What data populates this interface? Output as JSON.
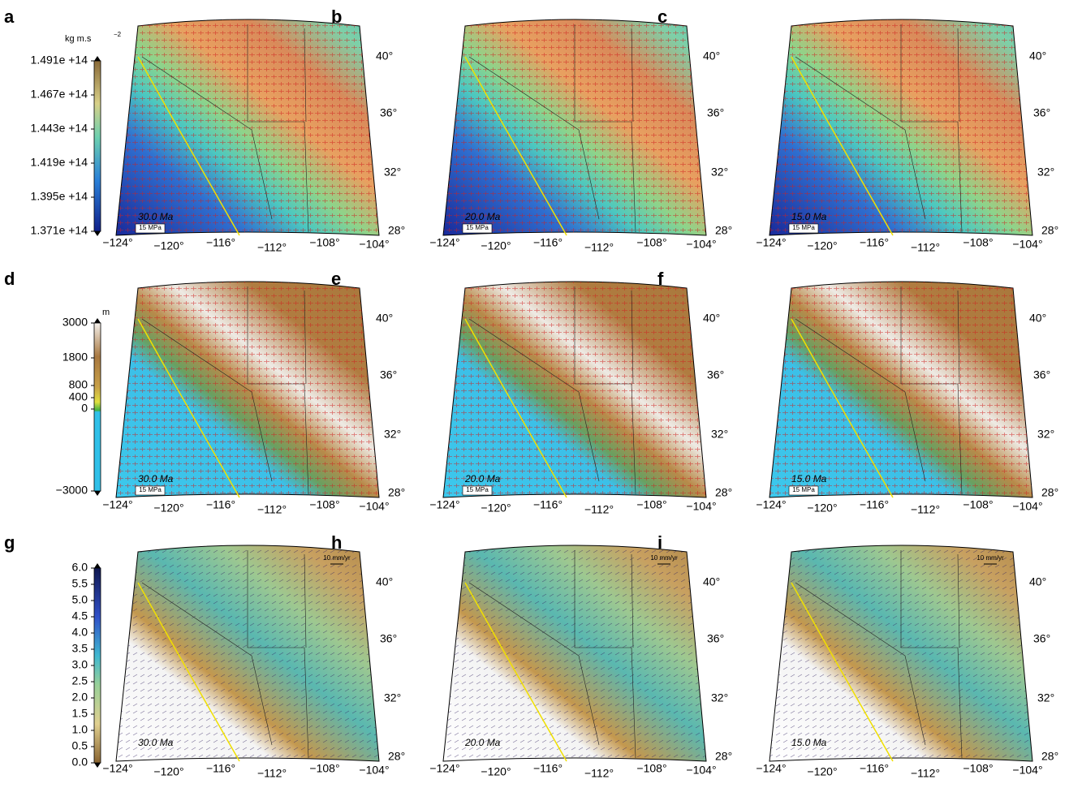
{
  "colorbars": [
    {
      "unit": "kg m.s",
      "unit_sup": "−2",
      "ticks": [
        "1.491e +14",
        "1.467e +14",
        "1.443e +14",
        "1.419e +14",
        "1.395e +14",
        "1.371e +14"
      ]
    },
    {
      "unit": "m",
      "ticks": [
        "3000",
        "1800",
        "800",
        "400",
        "0",
        "−3000"
      ]
    },
    {
      "ticks": [
        "6.0",
        "5.5",
        "5.0",
        "4.5",
        "4.0",
        "3.5",
        "3.0",
        "2.5",
        "2.0",
        "1.5",
        "1.0",
        "0.5",
        "0.0"
      ]
    }
  ],
  "longitude_labels": [
    "−124°",
    "−120°",
    "−116°",
    "−112°",
    "−108°",
    "−104°"
  ],
  "latitude_labels": [
    "40°",
    "36°",
    "32°",
    "28°"
  ],
  "panels": [
    {
      "letter": "a",
      "age": "30.0 Ma",
      "scale": "15 MPa"
    },
    {
      "letter": "b",
      "age": "20.0 Ma",
      "scale": "15 MPa"
    },
    {
      "letter": "c",
      "age": "15.0 Ma",
      "scale": "15 MPa"
    },
    {
      "letter": "d",
      "age": "30.0 Ma",
      "scale": "15 MPa"
    },
    {
      "letter": "e",
      "age": "20.0 Ma",
      "scale": "15 MPa"
    },
    {
      "letter": "f",
      "age": "15.0 Ma",
      "scale": "15 MPa"
    },
    {
      "letter": "g",
      "age": "30.0 Ma",
      "scale": "10 mm/yr"
    },
    {
      "letter": "h",
      "age": "20.0 Ma",
      "scale": "10 mm/yr"
    },
    {
      "letter": "i",
      "age": "15.0 Ma",
      "scale": "10 mm/yr"
    }
  ]
}
